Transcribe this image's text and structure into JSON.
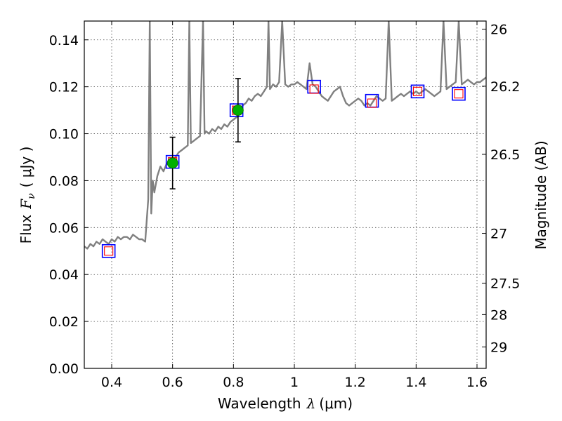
{
  "chart_data": {
    "type": "scatter",
    "title": "",
    "xlabel": "Wavelength",
    "xlabel_symbol": "λ",
    "xlabel_unit": "(μm)",
    "ylabel": "Flux",
    "ylabel_symbol": "F",
    "ylabel_subscript": "ν",
    "ylabel_unit": "( μJy )",
    "y2label": "Magnitude (AB)",
    "xlim": [
      0.31,
      1.63
    ],
    "ylim": [
      0.0,
      0.148
    ],
    "grid": true,
    "xticks": [
      0.4,
      0.6,
      0.8,
      1.0,
      1.2,
      1.4,
      1.6
    ],
    "xtick_labels": [
      "0.4",
      "0.6",
      "0.8",
      "1",
      "1.2",
      "1.4",
      "1.6"
    ],
    "yticks": [
      0.0,
      0.02,
      0.04,
      0.06,
      0.08,
      0.1,
      0.12,
      0.14
    ],
    "ytick_labels": [
      "0.00",
      "0.02",
      "0.04",
      "0.06",
      "0.08",
      "0.10",
      "0.12",
      "0.14"
    ],
    "y2ticks": [
      {
        "label": "26",
        "mag": 26.0
      },
      {
        "label": "26.2",
        "mag": 26.2
      },
      {
        "label": "26.5",
        "mag": 26.5
      },
      {
        "label": "27",
        "mag": 27.0
      },
      {
        "label": "27.5",
        "mag": 27.5
      },
      {
        "label": "28",
        "mag": 28.0
      },
      {
        "label": "29",
        "mag": 29.0
      }
    ],
    "series": [
      {
        "kind": "line",
        "color": "#808080",
        "x": [
          0.31,
          0.32,
          0.33,
          0.34,
          0.35,
          0.36,
          0.37,
          0.38,
          0.39,
          0.4,
          0.41,
          0.42,
          0.43,
          0.44,
          0.45,
          0.46,
          0.47,
          0.48,
          0.49,
          0.5,
          0.51,
          0.52,
          0.525,
          0.53,
          0.535,
          0.54,
          0.55,
          0.56,
          0.57,
          0.58,
          0.59,
          0.6,
          0.61,
          0.62,
          0.63,
          0.64,
          0.65,
          0.655,
          0.66,
          0.67,
          0.68,
          0.69,
          0.7,
          0.705,
          0.71,
          0.72,
          0.73,
          0.74,
          0.75,
          0.76,
          0.77,
          0.78,
          0.79,
          0.8,
          0.81,
          0.82,
          0.83,
          0.84,
          0.85,
          0.86,
          0.87,
          0.88,
          0.89,
          0.9,
          0.91,
          0.915,
          0.92,
          0.93,
          0.94,
          0.95,
          0.96,
          0.97,
          0.98,
          0.99,
          1.0,
          1.01,
          1.02,
          1.03,
          1.04,
          1.05,
          1.06,
          1.07,
          1.08,
          1.09,
          1.1,
          1.11,
          1.12,
          1.13,
          1.14,
          1.15,
          1.16,
          1.17,
          1.18,
          1.19,
          1.2,
          1.21,
          1.22,
          1.23,
          1.24,
          1.25,
          1.26,
          1.27,
          1.28,
          1.29,
          1.3,
          1.31,
          1.32,
          1.33,
          1.34,
          1.35,
          1.36,
          1.37,
          1.38,
          1.39,
          1.4,
          1.41,
          1.42,
          1.43,
          1.44,
          1.45,
          1.46,
          1.47,
          1.48,
          1.49,
          1.5,
          1.51,
          1.52,
          1.53,
          1.54,
          1.55,
          1.56,
          1.57,
          1.58,
          1.59,
          1.6,
          1.61,
          1.62,
          1.63
        ],
        "y": [
          0.052,
          0.051,
          0.053,
          0.052,
          0.054,
          0.053,
          0.055,
          0.054,
          0.053,
          0.055,
          0.054,
          0.056,
          0.055,
          0.056,
          0.056,
          0.055,
          0.057,
          0.056,
          0.055,
          0.055,
          0.054,
          0.072,
          0.148,
          0.066,
          0.08,
          0.075,
          0.082,
          0.086,
          0.084,
          0.087,
          0.088,
          0.089,
          0.09,
          0.092,
          0.093,
          0.094,
          0.095,
          0.148,
          0.096,
          0.097,
          0.098,
          0.099,
          0.148,
          0.1,
          0.101,
          0.1,
          0.102,
          0.101,
          0.103,
          0.102,
          0.104,
          0.103,
          0.105,
          0.106,
          0.107,
          0.11,
          0.112,
          0.113,
          0.115,
          0.114,
          0.116,
          0.117,
          0.116,
          0.118,
          0.12,
          0.148,
          0.119,
          0.121,
          0.12,
          0.122,
          0.148,
          0.121,
          0.12,
          0.121,
          0.121,
          0.122,
          0.121,
          0.12,
          0.119,
          0.13,
          0.121,
          0.12,
          0.118,
          0.116,
          0.115,
          0.114,
          0.116,
          0.118,
          0.119,
          0.12,
          0.116,
          0.113,
          0.112,
          0.113,
          0.114,
          0.115,
          0.114,
          0.112,
          0.113,
          0.112,
          0.114,
          0.116,
          0.115,
          0.114,
          0.115,
          0.148,
          0.114,
          0.115,
          0.116,
          0.117,
          0.116,
          0.117,
          0.118,
          0.117,
          0.118,
          0.117,
          0.118,
          0.119,
          0.118,
          0.117,
          0.116,
          0.117,
          0.118,
          0.148,
          0.119,
          0.12,
          0.121,
          0.122,
          0.148,
          0.121,
          0.122,
          0.123,
          0.122,
          0.121,
          0.122,
          0.122,
          0.123,
          0.124
        ]
      },
      {
        "kind": "open-square-blue",
        "color": "#0000ff",
        "x": [
          0.39,
          0.6,
          0.81,
          1.065,
          1.255,
          1.405,
          1.54
        ],
        "y": [
          0.05,
          0.088,
          0.11,
          0.12,
          0.114,
          0.118,
          0.117
        ]
      },
      {
        "kind": "open-square-red",
        "color": "#ff0000",
        "x": [
          0.39,
          0.6,
          0.81,
          1.065,
          1.255,
          1.405,
          1.54
        ],
        "y": [
          0.05,
          0.088,
          0.11,
          0.119,
          0.113,
          0.118,
          0.117
        ]
      },
      {
        "kind": "filled-circle-green",
        "color": "#00b000",
        "x": [
          0.6,
          0.815
        ],
        "y": [
          0.0875,
          0.11
        ],
        "yerr": [
          0.011,
          0.0135
        ]
      }
    ]
  }
}
